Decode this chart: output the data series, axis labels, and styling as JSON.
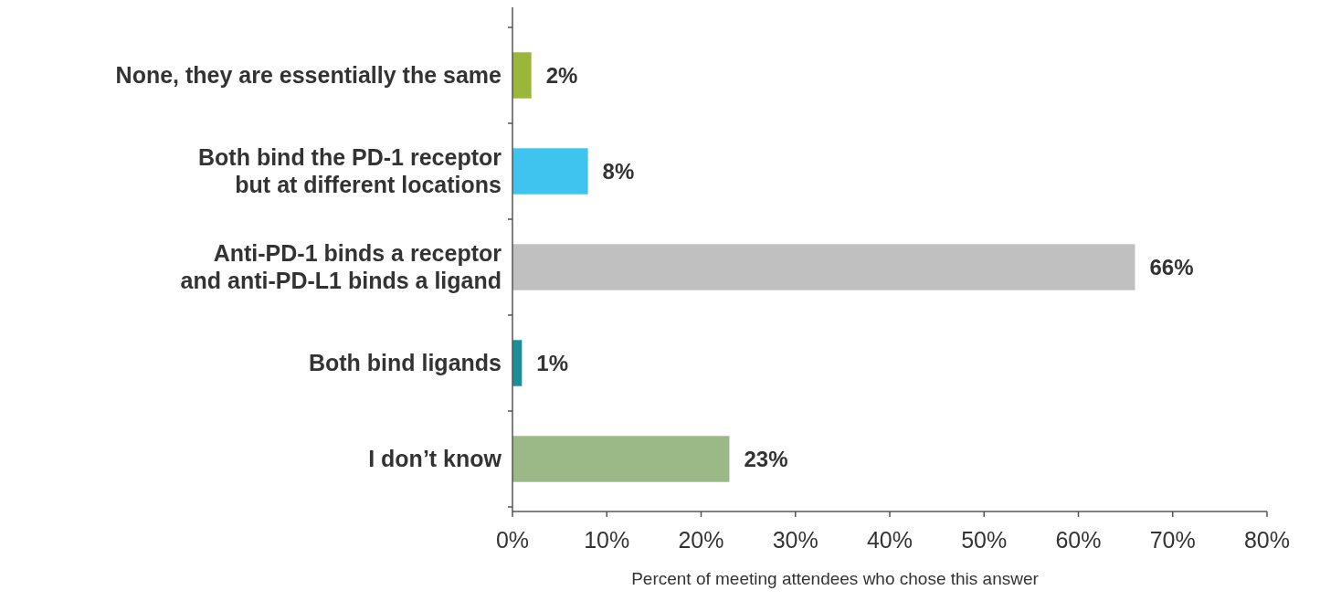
{
  "chart_data": {
    "type": "bar",
    "orientation": "horizontal",
    "xlabel": "Percent of meeting attendees who chose this answer",
    "categories": [
      "None, they are essentially the same",
      "Both bind the PD-1 receptor\nbut at different locations",
      "Anti-PD-1 binds a receptor\nand anti-PD-L1 binds a ligand",
      "Both bind ligands",
      "I don’t know"
    ],
    "values": [
      2,
      8,
      66,
      1,
      23
    ],
    "colors": [
      "#9ab73a",
      "#3fc4f0",
      "#c0c0c0",
      "#1a8f9a",
      "#9bb887"
    ],
    "data_labels": true,
    "value_labels": [
      "2%",
      "8%",
      "66%",
      "1%",
      "23%"
    ],
    "xlim": [
      0,
      80
    ],
    "xticks": [
      {
        "value": 0,
        "label": "0%"
      },
      {
        "value": 10,
        "label": "10%"
      },
      {
        "value": 20,
        "label": "20%"
      },
      {
        "value": 30,
        "label": "30%"
      },
      {
        "value": 40,
        "label": "40%"
      },
      {
        "value": 50,
        "label": "50%"
      },
      {
        "value": 60,
        "label": "60%"
      },
      {
        "value": 70,
        "label": "70%"
      },
      {
        "value": 80,
        "label": "80%"
      }
    ],
    "grid": false
  }
}
